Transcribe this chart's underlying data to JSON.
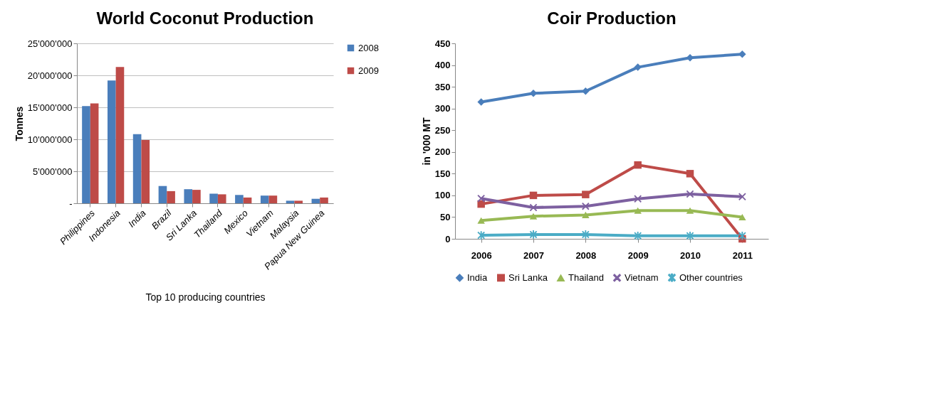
{
  "chart_data": [
    {
      "type": "bar",
      "title": "World Coconut Production",
      "xlabel": "Top 10 producing countries",
      "ylabel": "Tonnes",
      "categories": [
        "Philippines",
        "Indonesia",
        "India",
        "Brazil",
        "Sri Lanka",
        "Thailand",
        "Mexico",
        "Vietnam",
        "Malaysia",
        "Papua New Guinea"
      ],
      "series": [
        {
          "name": "2008",
          "color": "#4a7ebb",
          "values": [
            15200000,
            19200000,
            10800000,
            2700000,
            2200000,
            1500000,
            1300000,
            1200000,
            400000,
            700000
          ]
        },
        {
          "name": "2009",
          "color": "#be4b48",
          "values": [
            15600000,
            21300000,
            9900000,
            1900000,
            2100000,
            1400000,
            900000,
            1200000,
            400000,
            900000
          ]
        }
      ],
      "ylim": [
        0,
        25000000
      ],
      "yticks": [
        {
          "value": 0,
          "label": "-"
        },
        {
          "value": 5000000,
          "label": "5'000'000"
        },
        {
          "value": 10000000,
          "label": "10'000'000"
        },
        {
          "value": 15000000,
          "label": "15'000'000"
        },
        {
          "value": 20000000,
          "label": "20'000'000"
        },
        {
          "value": 25000000,
          "label": "25'000'000"
        }
      ],
      "grid": "y",
      "legend": "right"
    },
    {
      "type": "line",
      "title": "Coir Production",
      "ylabel": "in '000 MT",
      "categories": [
        "2006",
        "2007",
        "2008",
        "2009",
        "2010",
        "2011"
      ],
      "series": [
        {
          "name": "India",
          "color": "#4a7ebb",
          "marker": "diamond",
          "values": [
            315,
            335,
            340,
            395,
            417,
            425
          ]
        },
        {
          "name": "Sri Lanka",
          "color": "#be4b48",
          "marker": "square",
          "values": [
            80,
            100,
            102,
            170,
            150,
            0
          ]
        },
        {
          "name": "Thailand",
          "color": "#98b954",
          "marker": "triangle",
          "values": [
            42,
            52,
            55,
            65,
            65,
            50
          ]
        },
        {
          "name": "Vietnam",
          "color": "#7d60a0",
          "marker": "cross",
          "values": [
            93,
            72,
            75,
            92,
            103,
            97
          ]
        },
        {
          "name": "Other countries",
          "color": "#4bacc6",
          "marker": "star",
          "values": [
            8,
            10,
            10,
            7,
            7,
            7
          ]
        }
      ],
      "ylim": [
        0,
        450
      ],
      "yticks": [
        0,
        50,
        100,
        150,
        200,
        250,
        300,
        350,
        400,
        450
      ],
      "legend": "bottom"
    }
  ]
}
